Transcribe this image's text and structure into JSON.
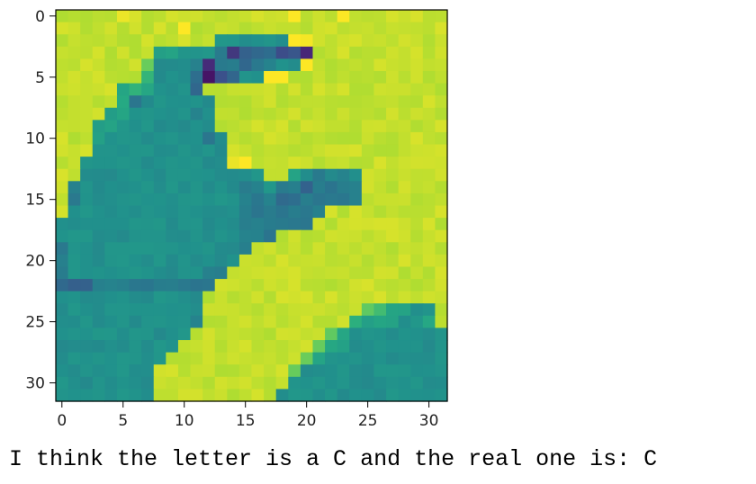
{
  "chart_data": {
    "type": "heatmap",
    "colormap": "viridis",
    "rows": 32,
    "cols": 32,
    "x_ticks": [
      "0",
      "5",
      "10",
      "15",
      "20",
      "25",
      "30"
    ],
    "y_ticks": [
      "0",
      "5",
      "10",
      "15",
      "20",
      "25",
      "30"
    ],
    "x_tick_values": [
      0,
      5,
      10,
      15,
      20,
      25,
      30
    ],
    "y_tick_values": [
      0,
      5,
      10,
      15,
      20,
      25,
      30
    ],
    "grid": false,
    "z_rows": [
      "BBBBBCBBBBBBBBBBBBBCBBBCBBBBBBBB",
      "BBBBBBBBBBCBBBBBBBBBBBBBBBBBBBBB",
      "BBBBBBBBBBBBB666666CCBBBBBBBBBBB",
      "BBBBBBBB7766652444332BBBBBBBBBBB",
      "BBBBBBB9666525545566CBBBBBBBBBBB",
      "BBBBBBB8666413466CCBBBBBBBBBBBBB",
      "BBBBB7876664BBBBBBBBBBBBBBBBBBBB",
      "BBBBB75666666BBBBBBBBBBBBBBBBBBB",
      "BBBB776666656BBBBBBBBBBBBBBBBBBB",
      "BBB7766666666BBBBBBBBBBBBBBBBBBB",
      "BBB76666666656BBBBBBBBBBBBBBBBBB",
      "BBB66666666666BBBBBBBBBBBBBBBBBB",
      "BB666666666666CCBBBBBBBBBBBBBBBB",
      "BB666666666666666BB765656BBBBBBB",
      "B566666666666665565545555BBBBBBB",
      "B566666666666665554455555BBBBBBB",
      "B666666666666665555555BBBBBBBBBB",
      "666666666666666555555BBBBBBBBBBB",
      "666666666666666555BBBBBBBBBBBBBB",
      "5666666666666665BBBBBBBBBBBBBBBB",
      "566666666666666BBBBBBBBBBBBBBBBB",
      "56666666666655BBBBBBBBBBBBBBBBBB",
      "4445555555555BBBBBBBBBBBBBBBBBBB",
      "666666666666BBBBBBBBBBBBBBBBBBBB",
      "666666666666BBBBBBBBBBBBB987766B",
      "666666666665BBBBBBBBBBBB8777667B",
      "66666666666BBBBBBBBBBB9766666666",
      "6666666666BBBBBBBBBBB97766666666",
      "666666666BBBBBBBBBBB976666666666",
      "66666666BBBBBBBBBBB9666666666666",
      "66666666BBBBBBBBBBB6666666666666",
      "66666666BBBBBBBBBB66666666666666"
    ],
    "xlim": [
      -0.5,
      31.5
    ],
    "ylim": [
      31.5,
      -0.5
    ]
  },
  "caption": "I think the letter is a C and the real one is: C"
}
